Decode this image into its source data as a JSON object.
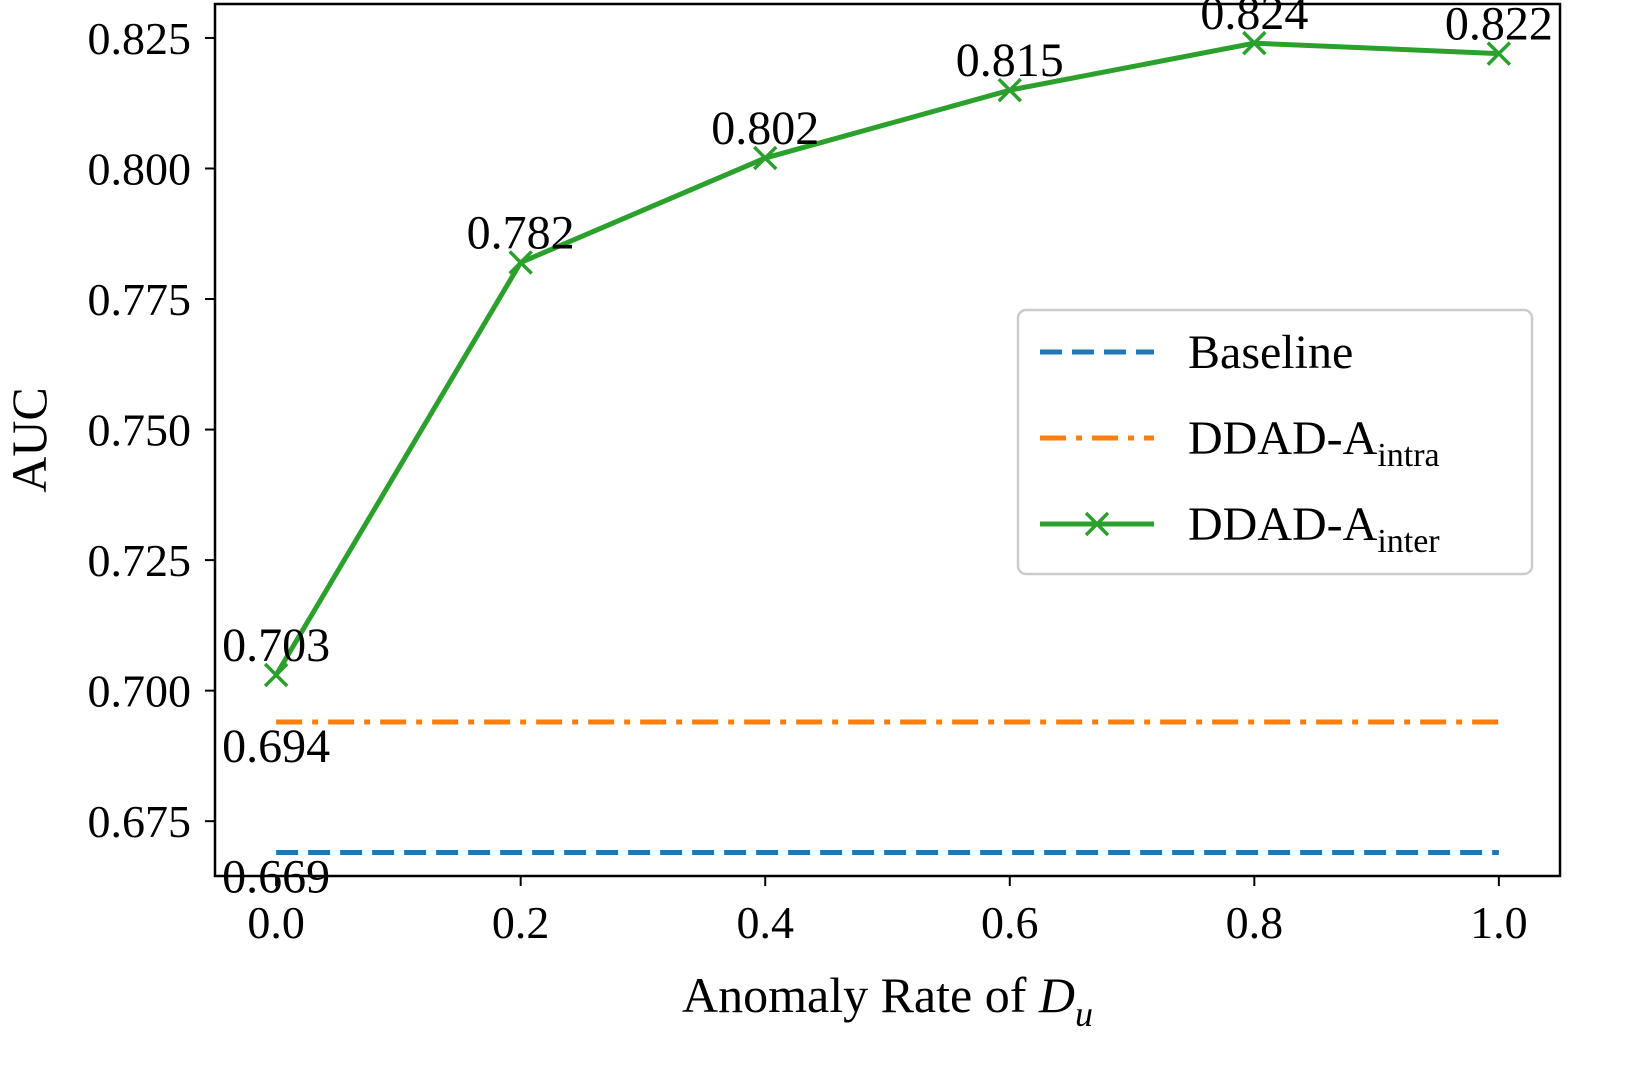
{
  "chart_data": {
    "type": "line",
    "title": "",
    "xlabel": "Anomaly Rate of ",
    "xlabel_symbol": "D",
    "xlabel_symbol_subscript": "u",
    "ylabel": "AUC",
    "x": [
      0.0,
      0.2,
      0.4,
      0.6,
      0.8,
      1.0
    ],
    "x_tick_labels": [
      "0.0",
      "0.2",
      "0.4",
      "0.6",
      "0.8",
      "1.0"
    ],
    "y_ticks": [
      0.7,
      0.725,
      0.75,
      0.775,
      0.8,
      0.825,
      0.675
    ],
    "y_tick_labels": [
      "0.700",
      "0.725",
      "0.750",
      "0.775",
      "0.800",
      "0.825",
      "0.675"
    ],
    "xlim": [
      -0.05,
      1.05
    ],
    "ylim": [
      0.6645,
      0.8315
    ],
    "grid": false,
    "legend_position": "center-right",
    "series": [
      {
        "name": "Baseline",
        "color": "#1f77b4",
        "style": "dashed",
        "values": [
          0.669,
          0.669,
          0.669,
          0.669,
          0.669,
          0.669
        ],
        "point_labels": [
          "0.669"
        ]
      },
      {
        "name": "DDAD-A",
        "name_sub": "intra",
        "color": "#ff7f0e",
        "style": "dashdot",
        "values": [
          0.694,
          0.694,
          0.694,
          0.694,
          0.694,
          0.694
        ],
        "point_labels": [
          "0.694"
        ]
      },
      {
        "name": "DDAD-A",
        "name_sub": "inter",
        "color": "#2ca02c",
        "style": "solid",
        "marker": "x",
        "values": [
          0.703,
          0.782,
          0.802,
          0.815,
          0.824,
          0.822
        ],
        "point_labels": [
          "0.703",
          "0.782",
          "0.802",
          "0.815",
          "0.824",
          "0.822"
        ]
      }
    ]
  }
}
